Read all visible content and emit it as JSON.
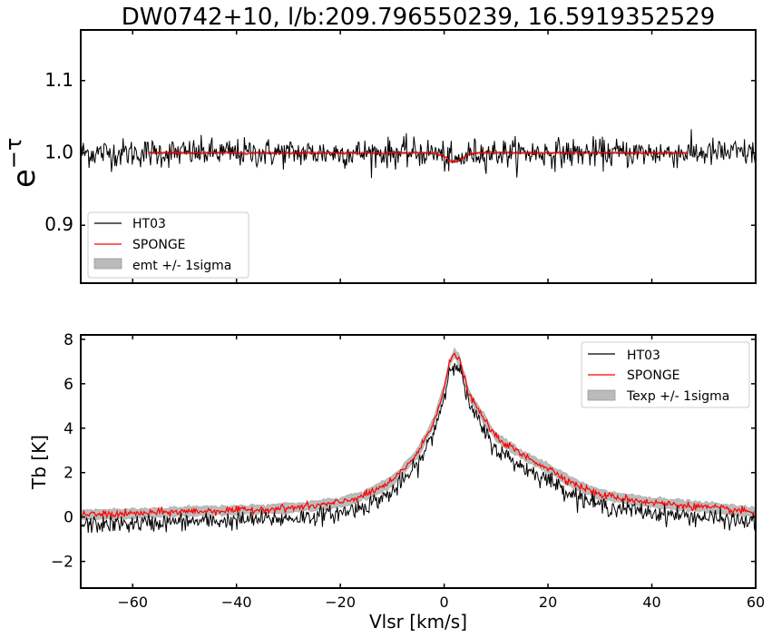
{
  "title": "DW0742+10, l/b:209.796550239, 16.5919352529",
  "chart_data": [
    {
      "type": "line",
      "ylabel": "e^-τ",
      "ylabel_base": "e",
      "ylabel_exp": "−τ",
      "xlabel": "",
      "xlim": [
        -70,
        60
      ],
      "ylim": [
        0.82,
        1.17
      ],
      "yticks": [
        0.9,
        1.0,
        1.1
      ],
      "ytick_labels": [
        "0.9",
        "1.0",
        "1.1"
      ],
      "xticks": [
        -60,
        -40,
        -20,
        0,
        20,
        40,
        60
      ],
      "grid": false,
      "legend_placement": "lower-left",
      "legend": [
        "HT03",
        "SPONGE",
        "emt +/- 1sigma"
      ],
      "series": [
        {
          "name": "HT03",
          "color": "#000000",
          "x_range": [
            -70,
            60
          ],
          "baseline": 1.0,
          "noise_sigma": 0.01,
          "features": [
            {
              "x": 2,
              "depth": 0.012,
              "width": 1.5
            }
          ]
        },
        {
          "name": "SPONGE",
          "color": "#ff0000",
          "x_range": [
            -57,
            47
          ],
          "baseline": 1.0,
          "features": [
            {
              "x": 2,
              "depth": 0.012,
              "width": 1.5
            }
          ]
        }
      ],
      "band": {
        "name": "emt +/- 1sigma",
        "color": "#aaaaaa",
        "halfwidth": 0.002
      }
    },
    {
      "type": "line",
      "ylabel": "Tb [K]",
      "xlabel": "Vlsr [km/s]",
      "xlim": [
        -70,
        60
      ],
      "ylim": [
        -3.2,
        8.2
      ],
      "yticks": [
        -2,
        0,
        2,
        4,
        6,
        8
      ],
      "ytick_labels": [
        "−2",
        "0",
        "2",
        "4",
        "6",
        "8"
      ],
      "xticks": [
        -60,
        -40,
        -20,
        0,
        20,
        40,
        60
      ],
      "xtick_labels": [
        "−60",
        "−40",
        "−20",
        "0",
        "20",
        "40",
        "60"
      ],
      "grid": false,
      "legend_placement": "upper-right",
      "legend": [
        "HT03",
        "SPONGE",
        "Texp +/- 1sigma"
      ],
      "profile_points": [
        {
          "x": -70,
          "y": 0.1
        },
        {
          "x": -60,
          "y": 0.15
        },
        {
          "x": -50,
          "y": 0.25
        },
        {
          "x": -40,
          "y": 0.3
        },
        {
          "x": -30,
          "y": 0.4
        },
        {
          "x": -25,
          "y": 0.5
        },
        {
          "x": -20,
          "y": 0.65
        },
        {
          "x": -15,
          "y": 1.0
        },
        {
          "x": -10,
          "y": 1.6
        },
        {
          "x": -5,
          "y": 2.9
        },
        {
          "x": -2,
          "y": 4.3
        },
        {
          "x": 0,
          "y": 5.8
        },
        {
          "x": 1,
          "y": 6.9
        },
        {
          "x": 2,
          "y": 7.4
        },
        {
          "x": 3,
          "y": 7.0
        },
        {
          "x": 5,
          "y": 5.4
        },
        {
          "x": 8,
          "y": 4.3
        },
        {
          "x": 10,
          "y": 3.6
        },
        {
          "x": 15,
          "y": 2.8
        },
        {
          "x": 20,
          "y": 2.2
        },
        {
          "x": 25,
          "y": 1.5
        },
        {
          "x": 30,
          "y": 1.0
        },
        {
          "x": 40,
          "y": 0.65
        },
        {
          "x": 50,
          "y": 0.45
        },
        {
          "x": 60,
          "y": 0.2
        }
      ],
      "series": [
        {
          "name": "HT03",
          "color": "#000000",
          "offset": -0.35,
          "noise_sigma": 0.2,
          "peak_scale": 0.97
        },
        {
          "name": "SPONGE",
          "color": "#ff0000",
          "offset": 0.0,
          "noise_sigma": 0.08,
          "peak_scale": 1.0
        }
      ],
      "band": {
        "name": "Texp +/- 1sigma",
        "color": "#aaaaaa",
        "halfwidth": 0.22
      }
    }
  ]
}
